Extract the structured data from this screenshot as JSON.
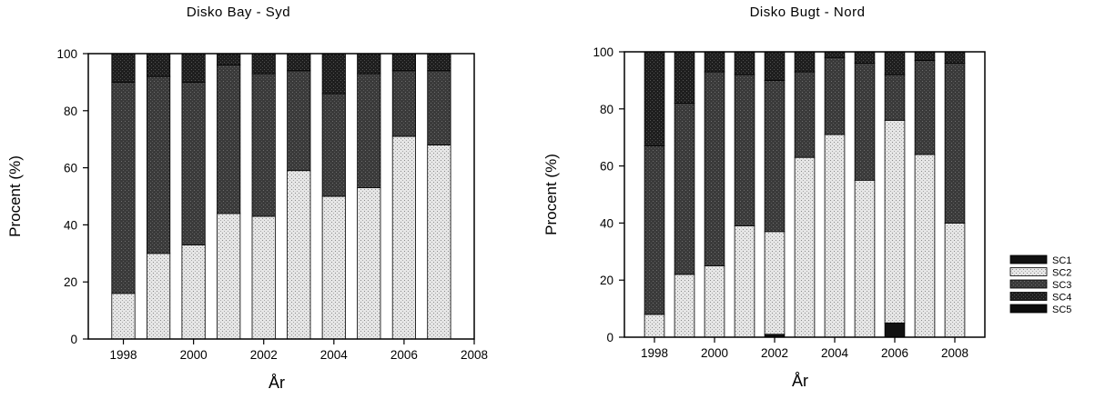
{
  "colors": {
    "SC1": "#111111",
    "SC2": "#d9d9d9",
    "SC3": "#333333",
    "SC4": "#262626",
    "SC5": "#0c0c0c",
    "frame": "#000000",
    "text": "#000000"
  },
  "legend": {
    "placement": "right",
    "entries": [
      "SC1",
      "SC2",
      "SC3",
      "SC4",
      "SC5"
    ]
  },
  "chart_data": [
    {
      "type": "bar",
      "stacked": true,
      "title": "Disko Bay - Syd",
      "xlabel": "År",
      "ylabel": "Procent (%)",
      "xlim": [
        1997,
        2008
      ],
      "ylim": [
        0,
        100
      ],
      "xticks": [
        "1998",
        "2000",
        "2002",
        "2004",
        "2006",
        "2008"
      ],
      "yticks": [
        "0",
        "20",
        "40",
        "60",
        "80",
        "100"
      ],
      "x": [
        1998,
        1999,
        2000,
        2001,
        2002,
        2003,
        2004,
        2005,
        2006,
        2007
      ],
      "series": [
        {
          "name": "SC1",
          "values": [
            0,
            0,
            0,
            0,
            0,
            0,
            0,
            0,
            0,
            0
          ]
        },
        {
          "name": "SC2",
          "values": [
            16,
            30,
            33,
            44,
            43,
            59,
            50,
            53,
            71,
            68
          ]
        },
        {
          "name": "SC3",
          "values": [
            74,
            62,
            57,
            52,
            50,
            35,
            36,
            40,
            23,
            26
          ]
        },
        {
          "name": "SC4",
          "values": [
            10,
            8,
            10,
            4,
            7,
            6,
            14,
            7,
            6,
            6
          ]
        },
        {
          "name": "SC5",
          "values": [
            0,
            0,
            0,
            0,
            0,
            0,
            0,
            0,
            0,
            0
          ]
        }
      ]
    },
    {
      "type": "bar",
      "stacked": true,
      "title": "Disko Bugt - Nord",
      "xlabel": "År",
      "ylabel": "Procent (%)",
      "xlim": [
        1997,
        2009
      ],
      "ylim": [
        0,
        100
      ],
      "xticks": [
        "1998",
        "2000",
        "2002",
        "2004",
        "2006",
        "2008"
      ],
      "yticks": [
        "0",
        "20",
        "40",
        "60",
        "80",
        "100"
      ],
      "x": [
        1998,
        1999,
        2000,
        2001,
        2002,
        2003,
        2004,
        2005,
        2006,
        2007,
        2008
      ],
      "series": [
        {
          "name": "SC1",
          "values": [
            0,
            0,
            0,
            0,
            1,
            0,
            0,
            0,
            5,
            0,
            0
          ]
        },
        {
          "name": "SC2",
          "values": [
            8,
            22,
            25,
            39,
            36,
            63,
            71,
            55,
            71,
            64,
            40
          ]
        },
        {
          "name": "SC3",
          "values": [
            59,
            60,
            68,
            53,
            53,
            30,
            27,
            41,
            16,
            33,
            56
          ]
        },
        {
          "name": "SC4",
          "values": [
            33,
            18,
            7,
            8,
            10,
            7,
            2,
            4,
            8,
            3,
            4
          ]
        },
        {
          "name": "SC5",
          "values": [
            0,
            0,
            0,
            0,
            0,
            0,
            0,
            0,
            0,
            0,
            0
          ]
        }
      ]
    }
  ]
}
